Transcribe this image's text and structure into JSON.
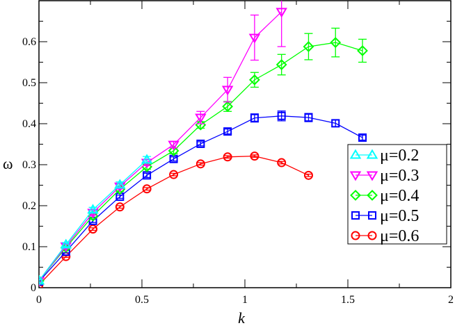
{
  "chart_data": {
    "type": "line",
    "title": "",
    "xlabel": "k",
    "ylabel": "ω",
    "xlim": [
      0,
      2
    ],
    "ylim": [
      0,
      0.7
    ],
    "x_ticks": [
      0,
      0.5,
      1,
      1.5,
      2
    ],
    "x_tick_labels": [
      "0",
      "0.5",
      "1",
      "1.5",
      "2"
    ],
    "y_ticks": [
      0,
      0.1,
      0.2,
      0.3,
      0.4,
      0.5,
      0.6
    ],
    "y_tick_labels": [
      "0",
      "0.1",
      "0.2",
      "0.3",
      "0.4",
      "0.5",
      "0.6"
    ],
    "grid": false,
    "legend_position": "right-center",
    "series": [
      {
        "name": "μ=0.2",
        "color": "#00ffff",
        "marker": "triangle-up",
        "x": [
          0,
          0.131,
          0.262,
          0.393,
          0.524
        ],
        "y": [
          0.017,
          0.105,
          0.19,
          0.251,
          0.312
        ],
        "err": [
          0.004,
          0.005,
          0.006,
          0.007,
          0.008
        ]
      },
      {
        "name": "μ=0.3",
        "color": "#ff00ff",
        "marker": "triangle-down",
        "x": [
          0,
          0.131,
          0.262,
          0.393,
          0.524,
          0.654,
          0.785,
          0.916,
          1.047,
          1.178
        ],
        "y": [
          0.017,
          0.101,
          0.183,
          0.247,
          0.305,
          0.349,
          0.415,
          0.483,
          0.61,
          0.673
        ],
        "err": [
          0.004,
          0.005,
          0.006,
          0.006,
          0.007,
          0.008,
          0.015,
          0.03,
          0.055,
          0.085
        ]
      },
      {
        "name": "μ=0.4",
        "color": "#00ff00",
        "marker": "diamond",
        "x": [
          0,
          0.131,
          0.262,
          0.393,
          0.524,
          0.654,
          0.785,
          0.916,
          1.047,
          1.178,
          1.309,
          1.44,
          1.571
        ],
        "y": [
          0.017,
          0.098,
          0.175,
          0.24,
          0.295,
          0.334,
          0.397,
          0.442,
          0.507,
          0.544,
          0.588,
          0.598,
          0.578
        ],
        "err": [
          0.003,
          0.004,
          0.005,
          0.005,
          0.006,
          0.007,
          0.008,
          0.012,
          0.018,
          0.025,
          0.032,
          0.035,
          0.028
        ]
      },
      {
        "name": "μ=0.5",
        "color": "#0000ff",
        "marker": "square",
        "x": [
          0,
          0.131,
          0.262,
          0.393,
          0.524,
          0.654,
          0.785,
          0.916,
          1.047,
          1.178,
          1.309,
          1.44,
          1.571
        ],
        "y": [
          0.015,
          0.088,
          0.163,
          0.222,
          0.274,
          0.314,
          0.351,
          0.381,
          0.414,
          0.419,
          0.415,
          0.401,
          0.366
        ],
        "err": [
          0.003,
          0.003,
          0.004,
          0.004,
          0.005,
          0.005,
          0.005,
          0.006,
          0.01,
          0.012,
          0.01,
          0.008,
          0.006
        ]
      },
      {
        "name": "μ=0.6",
        "color": "#ff0000",
        "marker": "circle",
        "x": [
          0,
          0.131,
          0.262,
          0.393,
          0.524,
          0.654,
          0.785,
          0.916,
          1.047,
          1.178,
          1.309
        ],
        "y": [
          0.007,
          0.076,
          0.143,
          0.197,
          0.241,
          0.276,
          0.302,
          0.319,
          0.321,
          0.305,
          0.274
        ],
        "err": [
          0.002,
          0.002,
          0.003,
          0.003,
          0.003,
          0.003,
          0.003,
          0.003,
          0.003,
          0.003,
          0.003
        ]
      }
    ]
  },
  "legend": {
    "items": [
      {
        "label": "μ=0.2"
      },
      {
        "label": "μ=0.3"
      },
      {
        "label": "μ=0.4"
      },
      {
        "label": "μ=0.5"
      },
      {
        "label": "μ=0.6"
      }
    ]
  }
}
